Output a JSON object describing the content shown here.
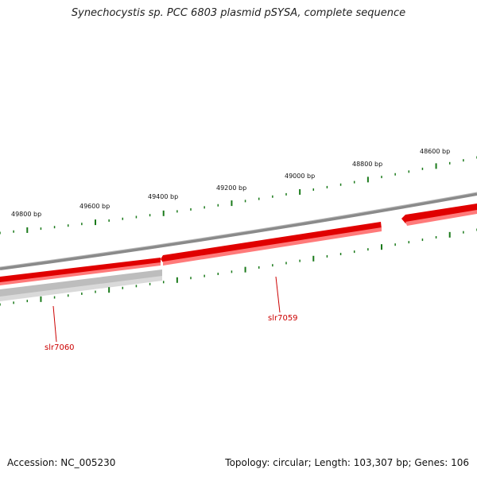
{
  "title": "Synechocystis sp. PCC 6803 plasmid pSYSA, complete sequence",
  "footer": {
    "accession": "Accession: NC_005230",
    "stats": "Topology: circular; Length: 103,307 bp; Genes: 106"
  },
  "ruler": {
    "labels": [
      "49800 bp",
      "49600 bp",
      "49400 bp",
      "49200 bp",
      "49000 bp",
      "48800 bp",
      "48600 bp"
    ]
  },
  "genes": [
    {
      "name": "slr7060"
    },
    {
      "name": "slr7059"
    }
  ],
  "colors": {
    "gene_forward": "#e00000",
    "gene_forward_shadow": "#ff7a7a",
    "backbone": "#777777",
    "gene_reverse": "#bdbdbd",
    "tick": "#1a7a1a",
    "label_line": "#cc0000"
  }
}
